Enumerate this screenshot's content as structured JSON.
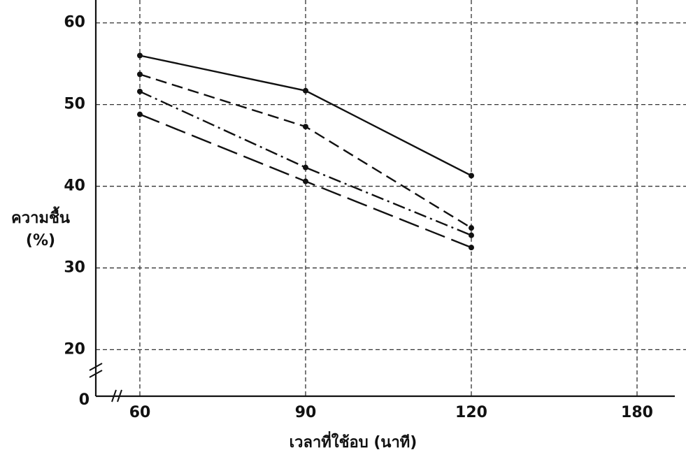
{
  "chart_data": {
    "type": "line",
    "xlabel": "เวลาที่ใช้อบ (นาที)",
    "ylabel": [
      "ความชื้น",
      "(%)"
    ],
    "categories": [
      "60",
      "90",
      "120",
      "180"
    ],
    "series": [
      {
        "color": "#111111",
        "style": "solid",
        "values": [
          56.0,
          51.7,
          41.3,
          null
        ]
      },
      {
        "color": "#111111",
        "style": "dashed",
        "values": [
          53.7,
          47.3,
          34.9,
          null
        ]
      },
      {
        "color": "#111111",
        "style": "dashdot",
        "values": [
          51.6,
          42.3,
          34.0,
          null
        ]
      },
      {
        "color": "#111111",
        "style": "longdash",
        "values": [
          48.8,
          40.6,
          32.5,
          null
        ]
      }
    ],
    "ylim": [
      14.3,
      62.8
    ],
    "yticks": [
      0,
      20,
      30,
      40,
      50,
      60
    ],
    "y_break": true,
    "x_break": true,
    "grid": true
  }
}
